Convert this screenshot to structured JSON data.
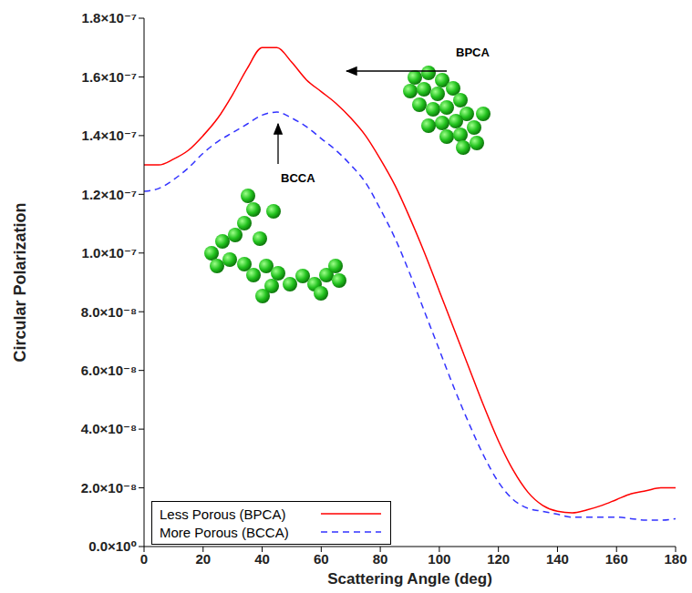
{
  "chart_data": {
    "type": "line",
    "x_label": "Scattering Angle (deg)",
    "y_label": "Circular Polarization",
    "x": [
      0,
      5,
      10,
      15,
      20,
      25,
      30,
      35,
      40,
      45,
      50,
      55,
      60,
      65,
      70,
      75,
      80,
      85,
      90,
      95,
      100,
      105,
      110,
      115,
      120,
      125,
      130,
      135,
      140,
      145,
      150,
      155,
      160,
      165,
      170,
      175,
      180
    ],
    "series": [
      {
        "name": "Less Porous (BPCA)",
        "color": "#ff0000",
        "line_style": "solid",
        "values": [
          1.3e-07,
          1.3e-07,
          1.32e-07,
          1.35e-07,
          1.4e-07,
          1.46e-07,
          1.54e-07,
          1.63e-07,
          1.7e-07,
          1.7e-07,
          1.65e-07,
          1.59e-07,
          1.55e-07,
          1.51e-07,
          1.46e-07,
          1.4e-07,
          1.32e-07,
          1.23e-07,
          1.12e-07,
          1e-07,
          8.7e-08,
          7.4e-08,
          6.1e-08,
          4.8e-08,
          3.6e-08,
          2.6e-08,
          1.85e-08,
          1.4e-08,
          1.2e-08,
          1.15e-08,
          1.25e-08,
          1.4e-08,
          1.6e-08,
          1.8e-08,
          1.9e-08,
          2e-08,
          2e-08
        ]
      },
      {
        "name": "More Porous (BCCA)",
        "color": "#3333ff",
        "line_style": "dashed",
        "values": [
          1.21e-07,
          1.22e-07,
          1.25e-07,
          1.29e-07,
          1.34e-07,
          1.38e-07,
          1.41e-07,
          1.44e-07,
          1.47e-07,
          1.48e-07,
          1.46e-07,
          1.43e-07,
          1.39e-07,
          1.35e-07,
          1.3e-07,
          1.24e-07,
          1.15e-07,
          1.05e-07,
          9.3e-08,
          8e-08,
          6.7e-08,
          5.4e-08,
          4.2e-08,
          3.1e-08,
          2.2e-08,
          1.6e-08,
          1.3e-08,
          1.2e-08,
          1.1e-08,
          1e-08,
          1e-08,
          1e-08,
          1e-08,
          9.5e-09,
          9e-09,
          9e-09,
          9.5e-09
        ]
      }
    ],
    "xlim": [
      0,
      180
    ],
    "xticks": [
      0,
      20,
      40,
      60,
      80,
      100,
      120,
      140,
      160,
      180
    ],
    "ylim": [
      0,
      1.8e-07
    ],
    "yticks": [
      {
        "value": 0,
        "label": "0.0×10⁰"
      },
      {
        "value": 2e-08,
        "label": "2.0×10⁻⁸"
      },
      {
        "value": 4e-08,
        "label": "4.0×10⁻⁸"
      },
      {
        "value": 6e-08,
        "label": "6.0×10⁻⁸"
      },
      {
        "value": 8e-08,
        "label": "8.0×10⁻⁸"
      },
      {
        "value": 1e-07,
        "label": "1.0×10⁻⁷"
      },
      {
        "value": 1.2e-07,
        "label": "1.2×10⁻⁷"
      },
      {
        "value": 1.4e-07,
        "label": "1.4×10⁻⁷"
      },
      {
        "value": 1.6e-07,
        "label": "1.6×10⁻⁷"
      },
      {
        "value": 1.8e-07,
        "label": "1.8×10⁻⁷"
      }
    ],
    "annotations": [
      "BPCA",
      "BCCA"
    ],
    "grid": false,
    "legend": "lower left"
  }
}
